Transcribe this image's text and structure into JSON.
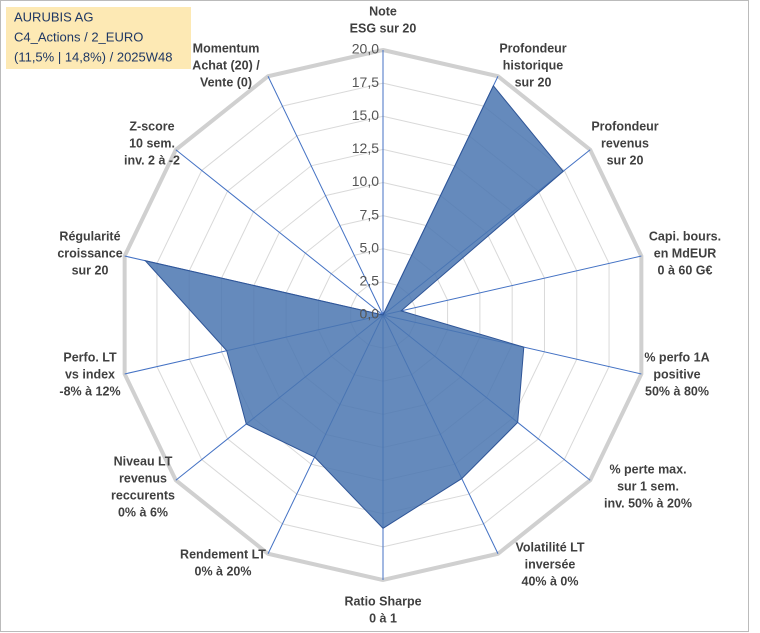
{
  "chart_data": {
    "type": "radar",
    "title": [
      "AURUBIS AG",
      "C4_Actions / 2_EURO",
      "(11,5% | 14,8%) / 2025W48"
    ],
    "categories": [
      [
        "Note",
        "ESG sur 20"
      ],
      [
        "Profondeur",
        "historique",
        "sur 20"
      ],
      [
        "Profondeur",
        "revenus",
        "sur 20"
      ],
      [
        "Capi. bours.",
        "en MdEUR",
        "0 à 60 G€"
      ],
      [
        "% perfo 1A",
        "positive",
        "50% à 80%"
      ],
      [
        "% perte max.",
        "sur 1 sem.",
        "inv. 50% à 20%"
      ],
      [
        "Volatilité LT",
        "inversée",
        "40% à 0%"
      ],
      [
        "Ratio Sharpe",
        "0 à 1"
      ],
      [
        "Rendement LT",
        "0% à 20%"
      ],
      [
        "Niveau LT",
        "revenus",
        "reccurents",
        "0% à 6%"
      ],
      [
        "Perfo. LT",
        "vs index",
        "-8% à 12%"
      ],
      [
        "Régularité",
        "croissance",
        "sur 20"
      ],
      [
        "Z-score",
        "10 sem.",
        "inv. 2 à -2"
      ],
      [
        "Momentum",
        "Achat (20) /",
        "Vente (0)"
      ]
    ],
    "values": [
      0,
      19.2,
      17.4,
      1.4,
      10.9,
      13,
      13.7,
      16.1,
      11.9,
      13.2,
      12.1,
      18.4,
      0,
      0
    ],
    "color": "#4a76b0",
    "ylim": [
      0,
      20
    ],
    "yticks": [
      {
        "value": 0,
        "label": "0,0"
      },
      {
        "value": 2.5,
        "label": "2,5"
      },
      {
        "value": 5,
        "label": "5,0"
      },
      {
        "value": 7.5,
        "label": "7,5"
      },
      {
        "value": 10,
        "label": "10,0"
      },
      {
        "value": 12.5,
        "label": "12,5"
      },
      {
        "value": 15,
        "label": "15,0"
      },
      {
        "value": 17.5,
        "label": "17,5"
      },
      {
        "value": 20,
        "label": "20,0"
      }
    ],
    "grid": true
  }
}
